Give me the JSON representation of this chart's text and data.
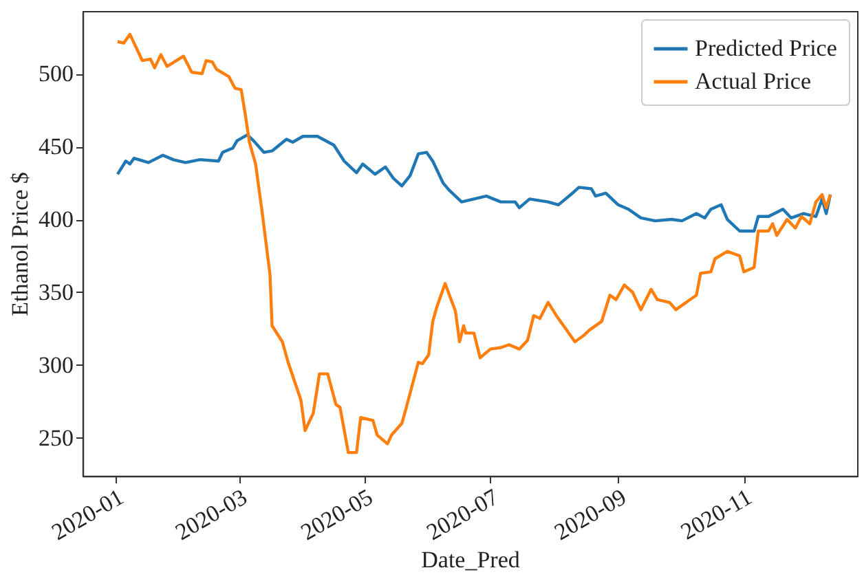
{
  "chart_data": {
    "type": "line",
    "xlabel": "Date_Pred",
    "ylabel": "Ethanol Price $",
    "xlim": [
      "2019-12-16",
      "2020-12-26"
    ],
    "xticks": [
      "2020-01",
      "2020-03",
      "2020-05",
      "2020-07",
      "2020-09",
      "2020-11"
    ],
    "ylim": [
      224,
      543
    ],
    "yticks": [
      250,
      300,
      350,
      400,
      450,
      500
    ],
    "grid": false,
    "legend": "top right",
    "marker": "none",
    "line_style": "solid",
    "series": [
      {
        "name": "Predicted Price",
        "color": "#1f77b4",
        "x": [
          "2020-01-02",
          "2020-01-06",
          "2020-01-08",
          "2020-01-10",
          "2020-01-17",
          "2020-01-24",
          "2020-01-29",
          "2020-02-04",
          "2020-02-11",
          "2020-02-20",
          "2020-02-22",
          "2020-02-27",
          "2020-02-29",
          "2020-03-05",
          "2020-03-08",
          "2020-03-13",
          "2020-03-17",
          "2020-03-24",
          "2020-03-27",
          "2020-04-01",
          "2020-04-08",
          "2020-04-16",
          "2020-04-21",
          "2020-04-27",
          "2020-04-30",
          "2020-05-06",
          "2020-05-11",
          "2020-05-15",
          "2020-05-19",
          "2020-05-23",
          "2020-05-27",
          "2020-05-31",
          "2020-06-03",
          "2020-06-08",
          "2020-06-11",
          "2020-06-17",
          "2020-06-29",
          "2020-07-06",
          "2020-07-13",
          "2020-07-15",
          "2020-07-20",
          "2020-07-29",
          "2020-08-03",
          "2020-08-09",
          "2020-08-13",
          "2020-08-19",
          "2020-08-21",
          "2020-08-26",
          "2020-09-01",
          "2020-09-06",
          "2020-09-12",
          "2020-09-19",
          "2020-09-27",
          "2020-10-02",
          "2020-10-09",
          "2020-10-13",
          "2020-10-16",
          "2020-10-21",
          "2020-10-24",
          "2020-10-30",
          "2020-11-06",
          "2020-11-08",
          "2020-11-13",
          "2020-11-20",
          "2020-11-24",
          "2020-11-30",
          "2020-12-06",
          "2020-12-09",
          "2020-12-11",
          "2020-12-13"
        ],
        "values": [
          431,
          440,
          438,
          442,
          439,
          444,
          441,
          439,
          441,
          440,
          446,
          449,
          454,
          458,
          454,
          446,
          447,
          455,
          453,
          457,
          457,
          451,
          440,
          432,
          438,
          431,
          436,
          428,
          423,
          430,
          445,
          446,
          440,
          425,
          420,
          412,
          416,
          412,
          412,
          408,
          414,
          412,
          410,
          417,
          422,
          421,
          416,
          418,
          410,
          407,
          401,
          399,
          400,
          399,
          404,
          401,
          407,
          410,
          400,
          392,
          392,
          402,
          402,
          407,
          401,
          404,
          402,
          414,
          404,
          417
        ]
      },
      {
        "name": "Actual Price",
        "color": "#ff7f0e",
        "x": [
          "2020-01-02",
          "2020-01-05",
          "2020-01-08",
          "2020-01-10",
          "2020-01-14",
          "2020-01-18",
          "2020-01-20",
          "2020-01-23",
          "2020-01-26",
          "2020-02-03",
          "2020-02-07",
          "2020-02-12",
          "2020-02-14",
          "2020-02-17",
          "2020-02-19",
          "2020-02-25",
          "2020-02-28",
          "2020-03-02",
          "2020-03-04",
          "2020-03-06",
          "2020-03-09",
          "2020-03-12",
          "2020-03-16",
          "2020-03-17",
          "2020-03-22",
          "2020-03-25",
          "2020-03-31",
          "2020-04-02",
          "2020-04-06",
          "2020-04-09",
          "2020-04-13",
          "2020-04-17",
          "2020-04-19",
          "2020-04-23",
          "2020-04-27",
          "2020-04-29",
          "2020-05-05",
          "2020-05-07",
          "2020-05-12",
          "2020-05-14",
          "2020-05-19",
          "2020-05-21",
          "2020-05-27",
          "2020-05-29",
          "2020-06-01",
          "2020-06-03",
          "2020-06-05",
          "2020-06-09",
          "2020-06-14",
          "2020-06-16",
          "2020-06-18",
          "2020-06-19",
          "2020-06-23",
          "2020-06-26",
          "2020-07-01",
          "2020-07-06",
          "2020-07-10",
          "2020-07-15",
          "2020-07-19",
          "2020-07-22",
          "2020-07-25",
          "2020-07-29",
          "2020-08-02",
          "2020-08-07",
          "2020-08-11",
          "2020-08-15",
          "2020-08-18",
          "2020-08-24",
          "2020-08-28",
          "2020-08-31",
          "2020-09-04",
          "2020-09-08",
          "2020-09-12",
          "2020-09-17",
          "2020-09-20",
          "2020-09-26",
          "2020-09-29",
          "2020-10-04",
          "2020-10-09",
          "2020-10-11",
          "2020-10-16",
          "2020-10-18",
          "2020-10-24",
          "2020-10-30",
          "2020-11-01",
          "2020-11-06",
          "2020-11-08",
          "2020-11-13",
          "2020-11-15",
          "2020-11-17",
          "2020-11-22",
          "2020-11-26",
          "2020-11-29",
          "2020-12-03",
          "2020-12-06",
          "2020-12-09",
          "2020-12-11",
          "2020-12-13"
        ],
        "values": [
          522,
          521,
          527,
          521,
          509,
          510,
          504,
          513,
          505,
          512,
          501,
          500,
          509,
          508,
          503,
          498,
          490,
          489,
          472,
          453,
          438,
          407,
          362,
          327,
          316,
          301,
          276,
          255,
          267,
          294,
          294,
          273,
          271,
          240,
          240,
          264,
          262,
          252,
          246,
          252,
          260,
          270,
          302,
          301,
          307,
          330,
          340,
          356,
          337,
          316,
          327,
          322,
          322,
          305,
          311,
          312,
          314,
          311,
          317,
          334,
          332,
          343,
          334,
          324,
          316,
          320,
          324,
          330,
          348,
          345,
          355,
          350,
          338,
          352,
          345,
          343,
          338,
          343,
          348,
          363,
          364,
          373,
          378,
          375,
          364,
          367,
          392,
          392,
          397,
          389,
          400,
          394,
          402,
          397,
          412,
          417,
          408,
          417
        ]
      }
    ]
  }
}
